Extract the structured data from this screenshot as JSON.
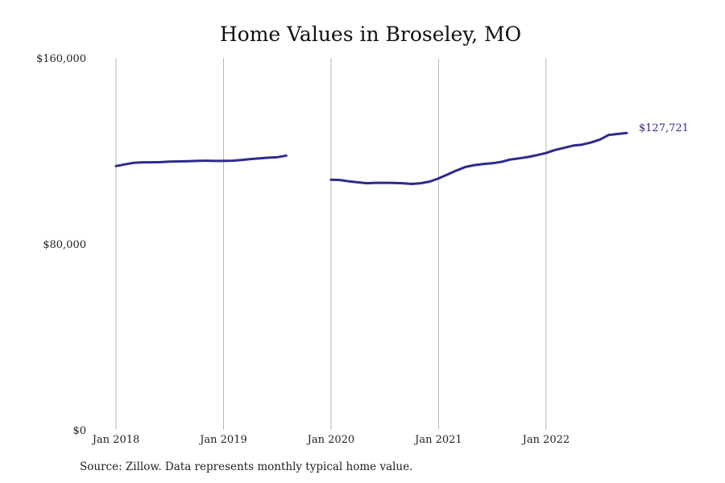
{
  "chart_data": {
    "type": "line",
    "title": "Home Values in Broseley, MO",
    "ylim": [
      0,
      160000
    ],
    "y_ticks": [
      {
        "value": 0,
        "label": "$0"
      },
      {
        "value": 80000,
        "label": "$80,000"
      },
      {
        "value": 160000,
        "label": "$160,000"
      }
    ],
    "x_range": [
      "2018-01",
      "2022-10"
    ],
    "x_ticks": [
      {
        "date": "2018-01",
        "label": "Jan 2018"
      },
      {
        "date": "2019-01",
        "label": "Jan 2019"
      },
      {
        "date": "2020-01",
        "label": "Jan 2020"
      },
      {
        "date": "2021-01",
        "label": "Jan 2021"
      },
      {
        "date": "2022-01",
        "label": "Jan 2022"
      }
    ],
    "grid": {
      "vertical": true,
      "horizontal": false
    },
    "series": [
      {
        "color": "#2e2a8a",
        "segments": [
          [
            [
              "2018-01",
              113500
            ],
            [
              "2018-02",
              114200
            ],
            [
              "2018-03",
              114900
            ],
            [
              "2018-04",
              115100
            ],
            [
              "2018-05",
              115100
            ],
            [
              "2018-06",
              115200
            ],
            [
              "2018-07",
              115400
            ],
            [
              "2018-08",
              115500
            ],
            [
              "2018-09",
              115600
            ],
            [
              "2018-10",
              115700
            ],
            [
              "2018-11",
              115800
            ],
            [
              "2018-12",
              115700
            ],
            [
              "2019-01",
              115700
            ],
            [
              "2019-02",
              115800
            ],
            [
              "2019-03",
              116100
            ],
            [
              "2019-04",
              116500
            ],
            [
              "2019-05",
              116800
            ],
            [
              "2019-06",
              117100
            ],
            [
              "2019-07",
              117300
            ],
            [
              "2019-08",
              118000
            ]
          ],
          [
            [
              "2020-01",
              107600
            ],
            [
              "2020-02",
              107500
            ],
            [
              "2020-03",
              106900
            ],
            [
              "2020-04",
              106500
            ],
            [
              "2020-05",
              106100
            ],
            [
              "2020-06",
              106300
            ],
            [
              "2020-07",
              106300
            ],
            [
              "2020-08",
              106200
            ],
            [
              "2020-09",
              106100
            ],
            [
              "2020-10",
              105800
            ],
            [
              "2020-11",
              106100
            ],
            [
              "2020-12",
              106800
            ],
            [
              "2021-01",
              108200
            ],
            [
              "2021-02",
              109900
            ],
            [
              "2021-03",
              111600
            ],
            [
              "2021-04",
              113100
            ],
            [
              "2021-05",
              113900
            ],
            [
              "2021-06",
              114400
            ],
            [
              "2021-07",
              114700
            ],
            [
              "2021-08",
              115300
            ],
            [
              "2021-09",
              116300
            ],
            [
              "2021-10",
              116800
            ],
            [
              "2021-11",
              117400
            ],
            [
              "2021-12",
              118200
            ],
            [
              "2022-01",
              119100
            ],
            [
              "2022-02",
              120400
            ],
            [
              "2022-03",
              121300
            ],
            [
              "2022-04",
              122300
            ],
            [
              "2022-05",
              122700
            ],
            [
              "2022-06",
              123600
            ],
            [
              "2022-07",
              124900
            ],
            [
              "2022-08",
              126900
            ],
            [
              "2022-09",
              127300
            ],
            [
              "2022-10",
              127721
            ]
          ]
        ]
      }
    ],
    "end_label": "$127,721",
    "source_note": "Source: Zillow. Data represents monthly typical home value."
  }
}
